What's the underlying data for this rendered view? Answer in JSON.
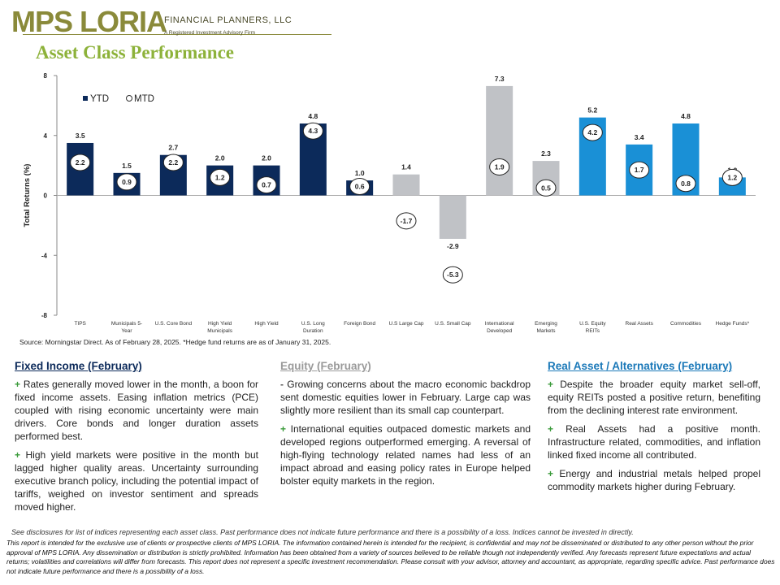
{
  "logo": {
    "mark": "MPS LORIA",
    "line1": "FINANCIAL PLANNERS, LLC",
    "line2": "A Registered Investment Advisory Firm"
  },
  "title": "Asset Class Performance",
  "colors": {
    "navy": "#0c2a5a",
    "gray": "#c0c2c6",
    "blue": "#1a90d6",
    "title_green": "#8db23a",
    "bullet_green": "#3a9a3a",
    "equity_heading": "#9a9a9a",
    "real_heading": "#1a78b8",
    "fixed_heading": "#0c2a5a"
  },
  "chart_data": {
    "type": "bar",
    "ylabel": "Total Returns (%)",
    "ylim": [
      -8,
      8
    ],
    "yticks": [
      8,
      4,
      0,
      -4,
      -8
    ],
    "legend": {
      "ytd": "YTD",
      "mtd": "MTD",
      "placement": "top-left"
    },
    "categories": [
      {
        "label": [
          "TIPS"
        ],
        "ytd": 3.5,
        "mtd": 2.2,
        "group": "navy"
      },
      {
        "label": [
          "Municipals 5-",
          "Year"
        ],
        "ytd": 1.5,
        "mtd": 0.9,
        "group": "navy"
      },
      {
        "label": [
          "U.S. Core Bond"
        ],
        "ytd": 2.7,
        "mtd": 2.2,
        "group": "navy"
      },
      {
        "label": [
          "High Yield",
          "Municipals"
        ],
        "ytd": 2.0,
        "mtd": 1.2,
        "group": "navy"
      },
      {
        "label": [
          "High Yield"
        ],
        "ytd": 2.0,
        "mtd": 0.7,
        "group": "navy"
      },
      {
        "label": [
          "U.S. Long",
          "Duration"
        ],
        "ytd": 4.8,
        "mtd": 4.3,
        "group": "navy"
      },
      {
        "label": [
          "Foreign Bond"
        ],
        "ytd": 1.0,
        "mtd": 0.6,
        "group": "navy"
      },
      {
        "label": [
          "U.S Large Cap"
        ],
        "ytd": 1.4,
        "mtd": -1.7,
        "group": "gray"
      },
      {
        "label": [
          "U.S. Small Cap"
        ],
        "ytd": -2.9,
        "mtd": -5.3,
        "group": "gray"
      },
      {
        "label": [
          "International",
          "Developed"
        ],
        "ytd": 7.3,
        "mtd": 1.9,
        "group": "gray"
      },
      {
        "label": [
          "Emerging",
          "Markets"
        ],
        "ytd": 2.3,
        "mtd": 0.5,
        "group": "gray"
      },
      {
        "label": [
          "U.S. Equity",
          "REITs"
        ],
        "ytd": 5.2,
        "mtd": 4.2,
        "group": "blue"
      },
      {
        "label": [
          "Real Assets"
        ],
        "ytd": 3.4,
        "mtd": 1.7,
        "group": "blue"
      },
      {
        "label": [
          "Commodities"
        ],
        "ytd": 4.8,
        "mtd": 0.8,
        "group": "blue"
      },
      {
        "label": [
          "Hedge Funds*"
        ],
        "ytd": 1.2,
        "mtd": 1.2,
        "group": "blue"
      }
    ]
  },
  "source": "Source: Morningstar Direct. As of February 28, 2025. *Hedge fund returns are as of January 31, 2025.",
  "columns": {
    "fixed": {
      "heading": "Fixed Income (February)",
      "bullet": "+",
      "p1": "Rates generally moved lower in the month, a boon for fixed income assets. Easing inflation metrics (PCE) coupled with rising economic uncertainty were main drivers. Core bonds and longer duration assets performed best.",
      "p2": "High yield markets were positive in the month but lagged higher quality areas. Uncertainty surrounding executive branch policy, including the potential impact of tariffs, weighed on investor sentiment and spreads moved higher."
    },
    "equity": {
      "heading": "Equity (February)",
      "bullet1": "-",
      "bullet2": "+",
      "p1": "Growing concerns about the macro economic backdrop sent domestic equities lower in February. Large cap was slightly more resilient than its small cap counterpart.",
      "p2": "International equities outpaced domestic markets and developed regions outperformed emerging. A reversal of high-flying technology related names had less of an impact abroad and easing policy rates in Europe helped bolster equity markets in the region."
    },
    "real": {
      "heading": "Real Asset / Alternatives (February)",
      "bullet": "+",
      "p1": "Despite the broader equity market sell-off, equity REITs posted a positive return, benefiting from the declining interest rate environment.",
      "p2": "Real Assets had a positive month. Infrastructure related, commodities, and inflation linked fixed income all contributed.",
      "p3": "Energy and industrial metals helped propel commodity markets higher during February."
    }
  },
  "disclaimer1": "See disclosures for list of indices representing each asset class. Past performance does not indicate future performance and there is a possibility of a loss. Indices cannot be invested in directly.",
  "disclaimer2": "This report is intended for the exclusive use of clients or prospective clients of MPS LORIA. The information contained herein is intended for the recipient, is confidential and may not be disseminated or distributed to any other person without the prior approval of MPS LORIA. Any dissemination or distribution is strictly prohibited. Information has been obtained from a variety of sources believed to be reliable though not independently verified. Any forecasts represent future expectations and actual returns; volatilities and correlations will differ from forecasts. This report does not represent a specific investment recommendation. Please consult with your advisor, attorney and accountant, as appropriate, regarding specific advice. Past performance does not indicate future performance and there is a possibility of a loss."
}
